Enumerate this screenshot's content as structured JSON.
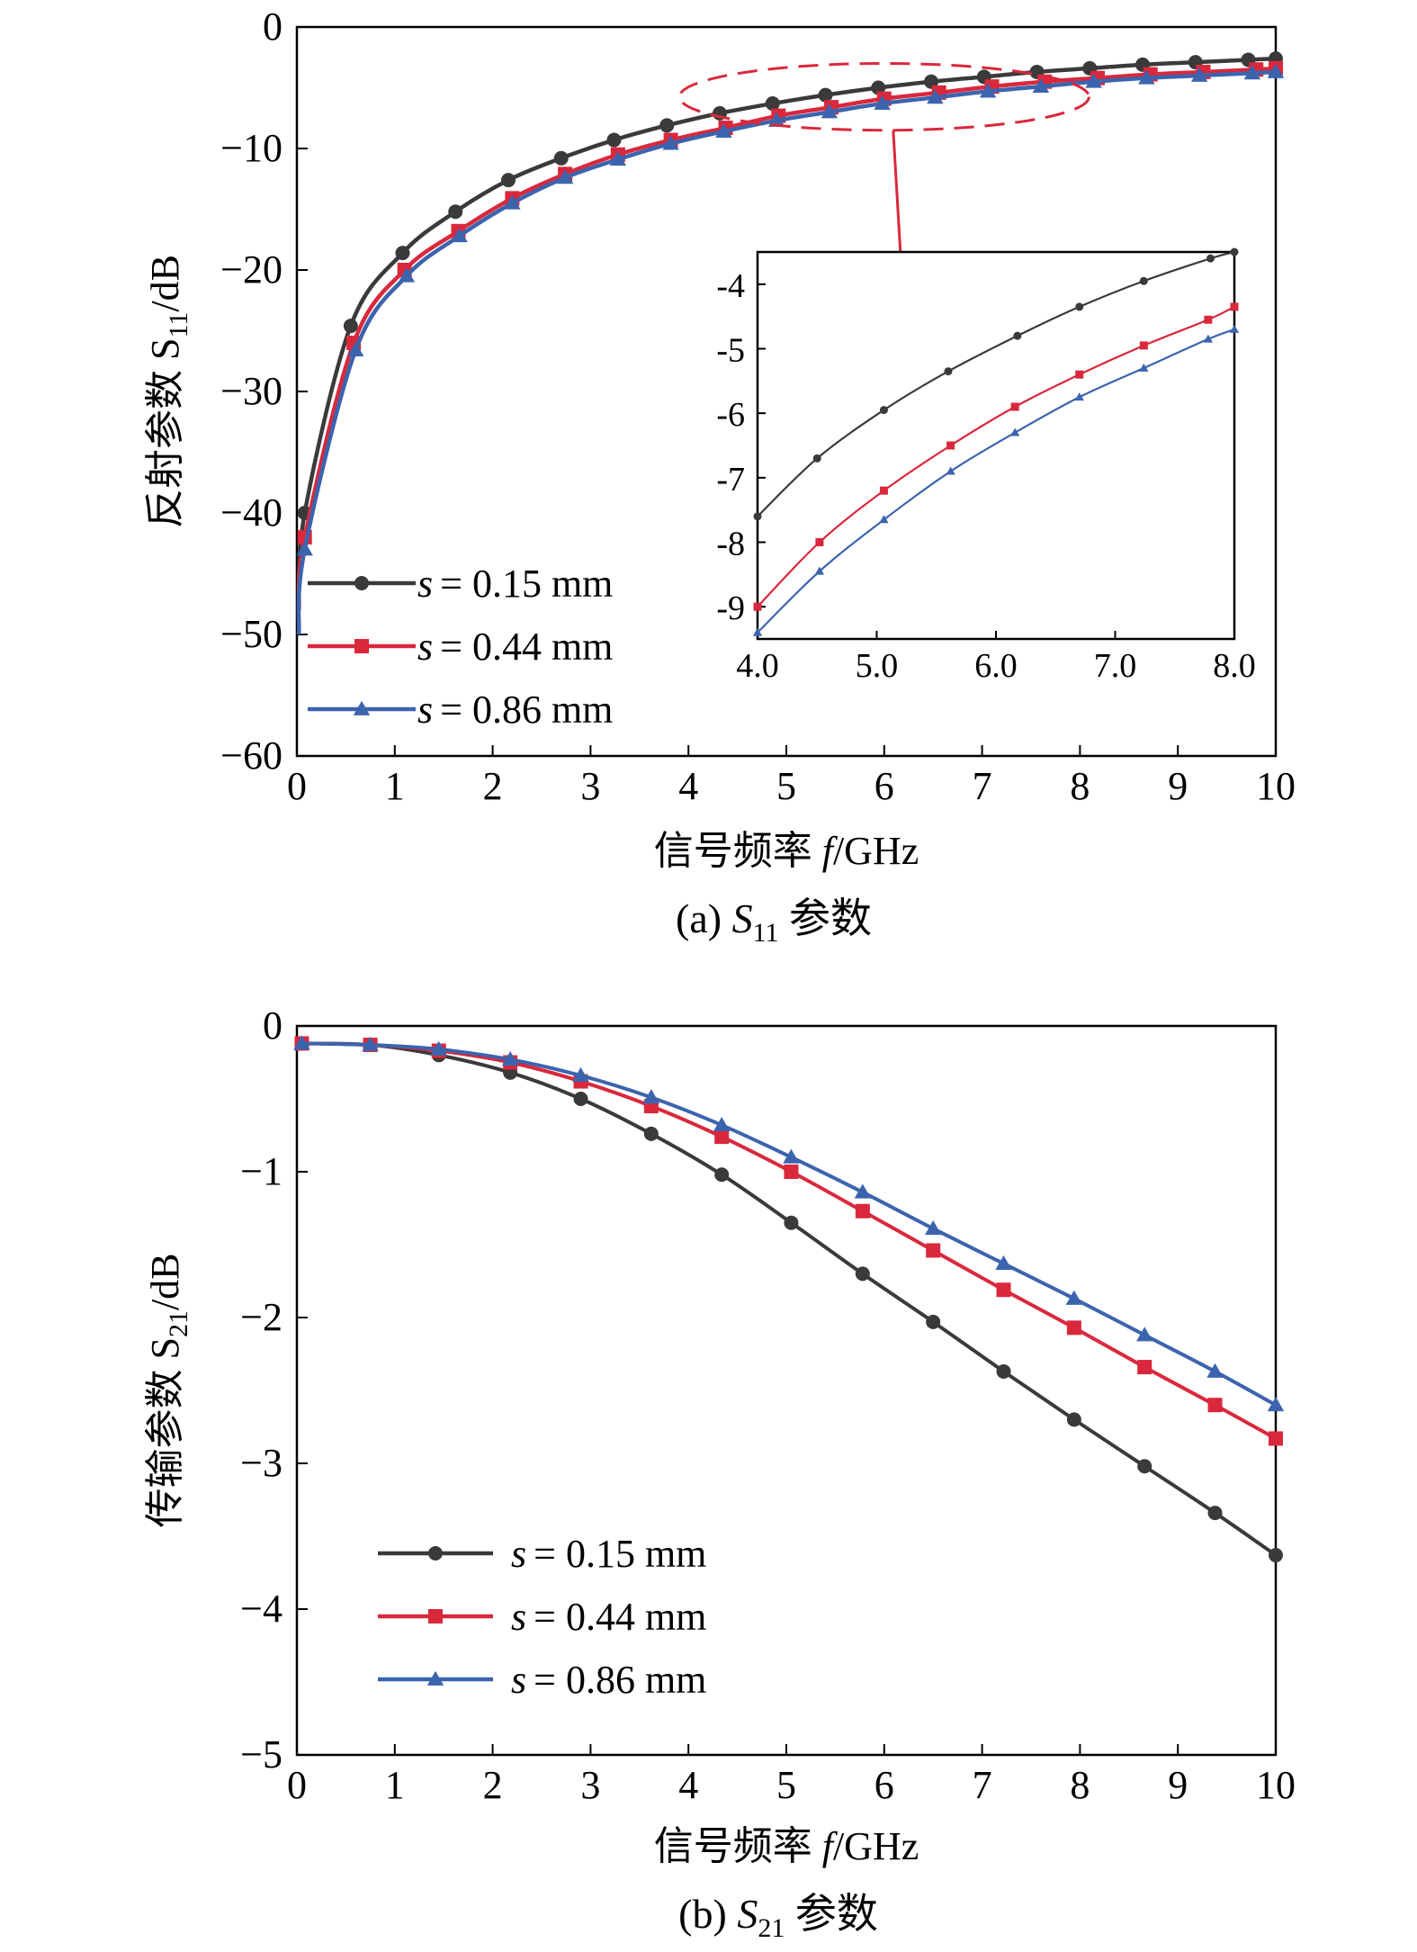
{
  "colors": {
    "s015": "#3a3a3a",
    "s044": "#d9283c",
    "s086": "#3c64ae",
    "zoom": "#d9283c"
  },
  "chart_data": [
    {
      "id": "a",
      "type": "line",
      "title": "",
      "caption": {
        "prefix": "(a) ",
        "sym": "S",
        "sub": "11",
        "suffix": " 参数"
      },
      "xlabel": {
        "text": "信号频率 ",
        "var": "f",
        "unit": "/GHz"
      },
      "ylabel": {
        "text": "反射参数 S",
        "sub": "11",
        "unit": "/dB"
      },
      "xlim": [
        0,
        10
      ],
      "ylim": [
        -60,
        0
      ],
      "xticks": [
        0,
        1,
        2,
        3,
        4,
        5,
        6,
        7,
        8,
        9,
        10
      ],
      "xtick_labels": [
        "0",
        "1",
        "2",
        "3",
        "4",
        "5",
        "6",
        "7",
        "8",
        "9",
        "10"
      ],
      "yticks": [
        0,
        -10,
        -20,
        -30,
        -40,
        -50,
        -60
      ],
      "ytick_labels": [
        "0",
        "−10",
        "−20",
        "−30",
        "−40",
        "−50",
        "−60"
      ],
      "legend": {
        "position": "lower-left",
        "entries": [
          "= 0.15 mm",
          "= 0.44 mm",
          "= 0.86 mm"
        ],
        "var": "s"
      },
      "series": [
        {
          "name": "s = 0.15 mm",
          "marker": "circle",
          "x": [
            0.02,
            0.08,
            0.55,
            1.08,
            1.62,
            2.16,
            2.7,
            3.24,
            3.78,
            4.32,
            4.86,
            5.4,
            5.94,
            6.48,
            7.02,
            7.56,
            8.1,
            8.64,
            9.18,
            9.72,
            10
          ],
          "y": [
            -48,
            -40,
            -24.6,
            -18.6,
            -15.2,
            -12.6,
            -10.8,
            -9.3,
            -8.1,
            -7.1,
            -6.3,
            -5.6,
            -5.0,
            -4.5,
            -4.1,
            -3.7,
            -3.4,
            -3.1,
            -2.9,
            -2.7,
            -2.6
          ]
        },
        {
          "name": "s = 0.44 mm",
          "marker": "square",
          "x": [
            0.02,
            0.08,
            0.58,
            1.1,
            1.65,
            2.2,
            2.74,
            3.28,
            3.82,
            4.38,
            4.92,
            5.46,
            6.0,
            6.56,
            7.1,
            7.64,
            8.18,
            8.72,
            9.26,
            9.8,
            10
          ],
          "y": [
            -48,
            -42,
            -26.0,
            -20.0,
            -16.8,
            -14.1,
            -12.1,
            -10.5,
            -9.3,
            -8.3,
            -7.3,
            -6.6,
            -5.9,
            -5.4,
            -4.9,
            -4.5,
            -4.2,
            -3.9,
            -3.7,
            -3.5,
            -3.4
          ]
        },
        {
          "name": "s = 0.86 mm",
          "marker": "triangle",
          "x": [
            0.02,
            0.08,
            0.6,
            1.12,
            1.66,
            2.2,
            2.74,
            3.28,
            3.82,
            4.36,
            4.9,
            5.44,
            5.98,
            6.52,
            7.06,
            7.6,
            8.14,
            8.68,
            9.22,
            9.76,
            10
          ],
          "y": [
            -50,
            -43,
            -26.6,
            -20.5,
            -17.2,
            -14.5,
            -12.4,
            -10.9,
            -9.6,
            -8.6,
            -7.7,
            -7.0,
            -6.3,
            -5.8,
            -5.3,
            -4.9,
            -4.5,
            -4.2,
            -4.0,
            -3.8,
            -3.7
          ]
        }
      ],
      "zoom_region": {
        "x": [
          4,
          8
        ],
        "y": [
          -8.5,
          -3
        ]
      },
      "inset": {
        "xlim": [
          4.0,
          8.0
        ],
        "ylim": [
          -9.5,
          -3.5
        ],
        "xticks": [
          4,
          5,
          6,
          7,
          8
        ],
        "xtick_labels": [
          "4.0",
          "5.0",
          "6.0",
          "7.0",
          "8.0"
        ],
        "yticks": [
          -4,
          -5,
          -6,
          -7,
          -8,
          -9
        ],
        "ytick_labels": [
          "-4",
          "-5",
          "-6",
          "-7",
          "-8",
          "-9"
        ],
        "series": [
          {
            "name": "s = 0.15 mm",
            "marker": "circle",
            "x": [
              4.0,
              4.5,
              5.06,
              5.6,
              6.18,
              6.7,
              7.24,
              7.8,
              8.0
            ],
            "y": [
              -7.6,
              -6.7,
              -5.95,
              -5.35,
              -4.8,
              -4.35,
              -3.95,
              -3.6,
              -3.5
            ]
          },
          {
            "name": "s = 0.44 mm",
            "marker": "square",
            "x": [
              4.0,
              4.52,
              5.06,
              5.62,
              6.16,
              6.7,
              7.24,
              7.78,
              8.0
            ],
            "y": [
              -9.0,
              -8.0,
              -7.2,
              -6.5,
              -5.9,
              -5.4,
              -4.95,
              -4.55,
              -4.35
            ]
          },
          {
            "name": "s = 0.86 mm",
            "marker": "triangle",
            "x": [
              4.0,
              4.52,
              5.06,
              5.62,
              6.16,
              6.7,
              7.24,
              7.78,
              8.0
            ],
            "y": [
              -9.4,
              -8.45,
              -7.65,
              -6.9,
              -6.3,
              -5.75,
              -5.3,
              -4.85,
              -4.7
            ]
          }
        ]
      }
    },
    {
      "id": "b",
      "type": "line",
      "title": "",
      "caption": {
        "prefix": "(b) ",
        "sym": "S",
        "sub": "21",
        "suffix": " 参数"
      },
      "xlabel": {
        "text": "信号频率 ",
        "var": "f",
        "unit": "/GHz"
      },
      "ylabel": {
        "text": "传输参数 S",
        "sub": "21",
        "unit": "/dB"
      },
      "xlim": [
        0,
        10
      ],
      "ylim": [
        -5,
        0
      ],
      "xticks": [
        0,
        1,
        2,
        3,
        4,
        5,
        6,
        7,
        8,
        9,
        10
      ],
      "xtick_labels": [
        "0",
        "1",
        "2",
        "3",
        "4",
        "5",
        "6",
        "7",
        "8",
        "9",
        "10"
      ],
      "yticks": [
        0,
        -1,
        -2,
        -3,
        -4,
        -5
      ],
      "ytick_labels": [
        "0",
        "−1",
        "−2",
        "−3",
        "−4",
        "−5"
      ],
      "legend": {
        "position": "lower-left",
        "entries": [
          "= 0.15 mm",
          "= 0.44 mm",
          "= 0.86 mm"
        ],
        "var": "s"
      },
      "series": [
        {
          "name": "s = 0.15 mm",
          "marker": "circle",
          "x": [
            0.05,
            0.75,
            1.45,
            2.18,
            2.9,
            3.62,
            4.34,
            5.05,
            5.78,
            6.5,
            7.22,
            7.94,
            8.66,
            9.38,
            10
          ],
          "y": [
            -0.12,
            -0.13,
            -0.2,
            -0.32,
            -0.5,
            -0.74,
            -1.02,
            -1.35,
            -1.7,
            -2.03,
            -2.37,
            -2.7,
            -3.02,
            -3.34,
            -3.63
          ]
        },
        {
          "name": "s = 0.44 mm",
          "marker": "square",
          "x": [
            0.05,
            0.75,
            1.45,
            2.18,
            2.9,
            3.62,
            4.34,
            5.05,
            5.78,
            6.5,
            7.22,
            7.94,
            8.66,
            9.38,
            10
          ],
          "y": [
            -0.12,
            -0.13,
            -0.17,
            -0.25,
            -0.38,
            -0.55,
            -0.76,
            -1.0,
            -1.27,
            -1.54,
            -1.81,
            -2.07,
            -2.34,
            -2.6,
            -2.83
          ]
        },
        {
          "name": "s = 0.86 mm",
          "marker": "triangle",
          "x": [
            0.05,
            0.75,
            1.45,
            2.18,
            2.9,
            3.62,
            4.34,
            5.05,
            5.78,
            6.5,
            7.22,
            7.94,
            8.66,
            9.38,
            10
          ],
          "y": [
            -0.12,
            -0.13,
            -0.16,
            -0.23,
            -0.34,
            -0.49,
            -0.68,
            -0.9,
            -1.14,
            -1.39,
            -1.63,
            -1.87,
            -2.12,
            -2.37,
            -2.6
          ]
        }
      ]
    }
  ]
}
